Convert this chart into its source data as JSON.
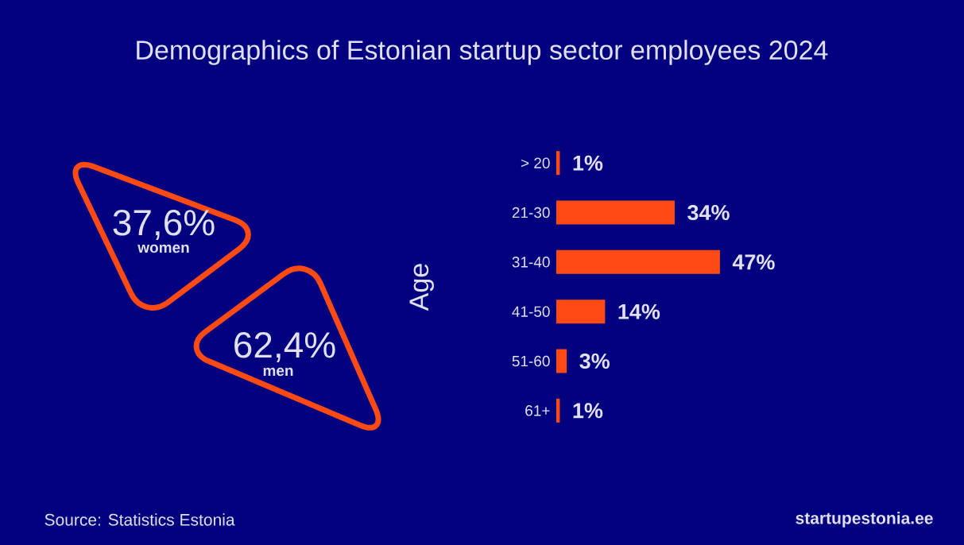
{
  "chart_data": [
    {
      "type": "other",
      "title": "Demographics of Estonian startup sector employees 2024",
      "categories": [
        "women",
        "men"
      ],
      "values": [
        37.6,
        62.4
      ],
      "value_labels": [
        "37,6%",
        "62,4%"
      ],
      "color": "#ff4a14"
    },
    {
      "type": "bar",
      "orientation": "horizontal",
      "ylabel": "Age",
      "categories": [
        "> 20",
        "21-30",
        "31-40",
        "41-50",
        "51-60",
        "61+"
      ],
      "values": [
        1,
        34,
        47,
        14,
        3,
        1
      ],
      "value_labels": [
        "1%",
        "34%",
        "47%",
        "14%",
        "3%",
        "1%"
      ],
      "color": "#ff4a14",
      "annotations": [
        "Source: Statistics Estonia",
        "startupestonia.ee"
      ]
    }
  ]
}
